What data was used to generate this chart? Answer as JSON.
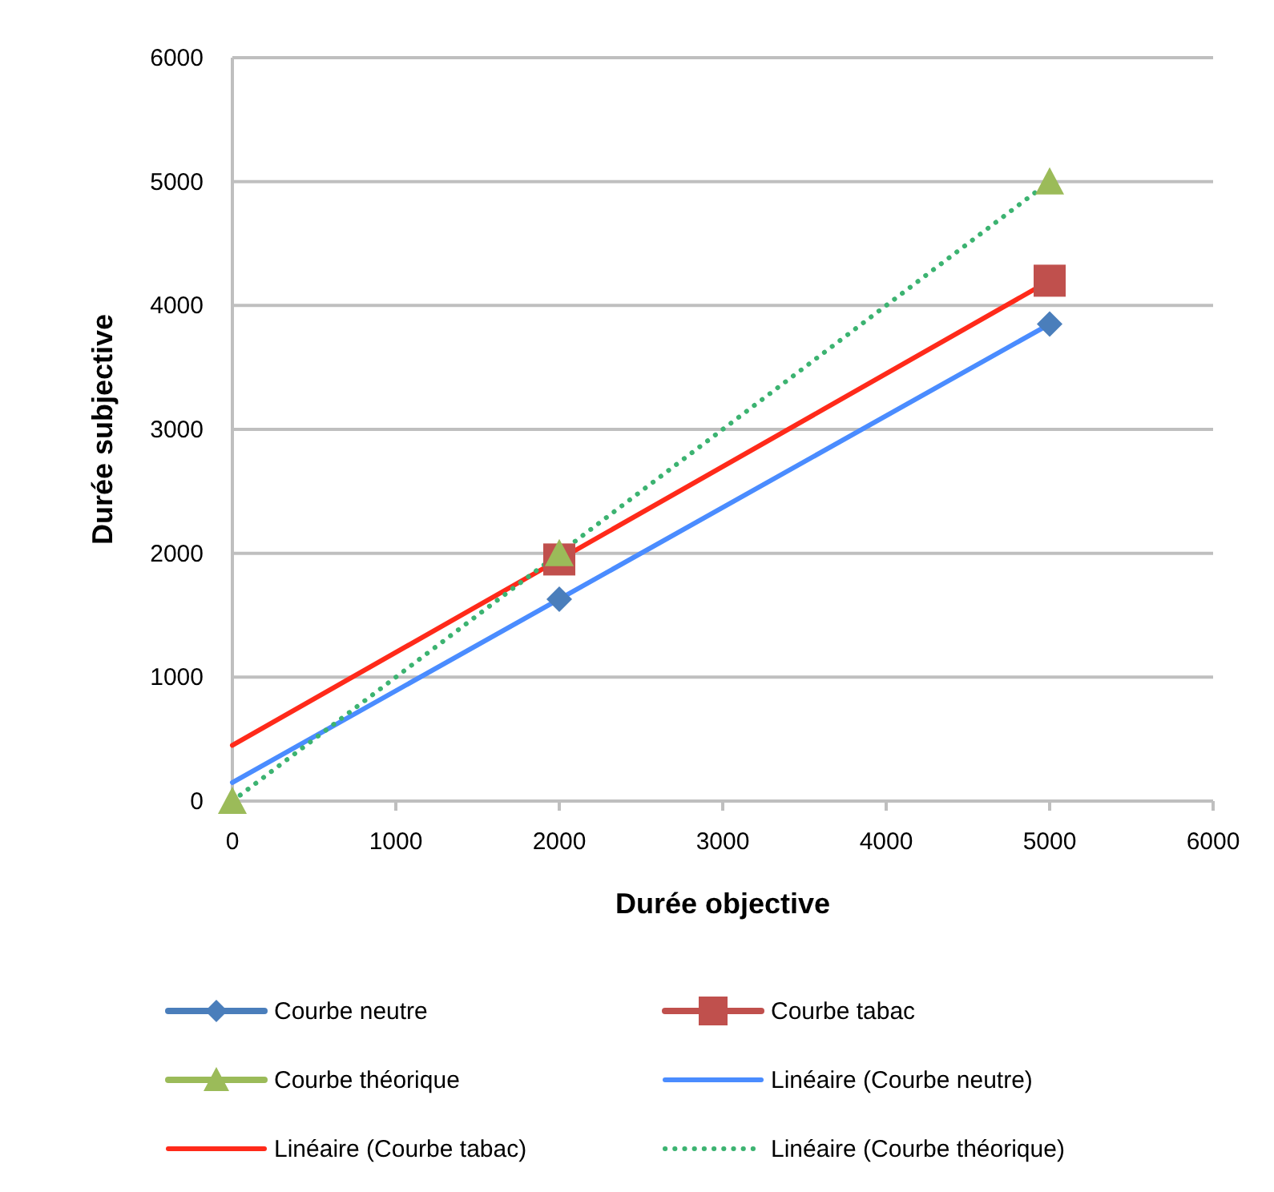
{
  "chart_data": {
    "type": "scatter",
    "xlabel": "Durée objective",
    "ylabel": "Durée subjective",
    "xlim": [
      0,
      6000
    ],
    "ylim": [
      0,
      6000
    ],
    "xticks": [
      0,
      1000,
      2000,
      3000,
      4000,
      5000,
      6000
    ],
    "yticks": [
      0,
      1000,
      2000,
      3000,
      4000,
      5000,
      6000
    ],
    "grid": "y",
    "legend": "bottom",
    "series": [
      {
        "name": "Courbe neutre",
        "marker": "diamond",
        "color": "#4a7ebb",
        "x": [
          2000,
          5000
        ],
        "values": [
          1630,
          3850
        ]
      },
      {
        "name": "Courbe tabac",
        "marker": "square",
        "color": "#c0504d",
        "x": [
          2000,
          5000
        ],
        "values": [
          1950,
          4200
        ]
      },
      {
        "name": "Courbe théorique",
        "marker": "triangle",
        "color": "#9bbb59",
        "x": [
          0,
          2000,
          5000
        ],
        "values": [
          0,
          2000,
          5000
        ]
      },
      {
        "name": "Linéaire (Courbe neutre)",
        "type": "line",
        "marker": "none",
        "line_style": "solid",
        "color": "#4a8cff",
        "x": [
          0,
          5000
        ],
        "values": [
          150,
          3850
        ]
      },
      {
        "name": "Linéaire (Courbe tabac)",
        "type": "line",
        "marker": "none",
        "line_style": "solid",
        "color": "#ff2a1a",
        "x": [
          0,
          5000
        ],
        "values": [
          450,
          4200
        ]
      },
      {
        "name": "Linéaire (Courbe théorique)",
        "type": "line",
        "marker": "none",
        "line_style": "dotted",
        "color": "#3cb371",
        "x": [
          0,
          5000
        ],
        "values": [
          0,
          5000
        ]
      }
    ]
  }
}
